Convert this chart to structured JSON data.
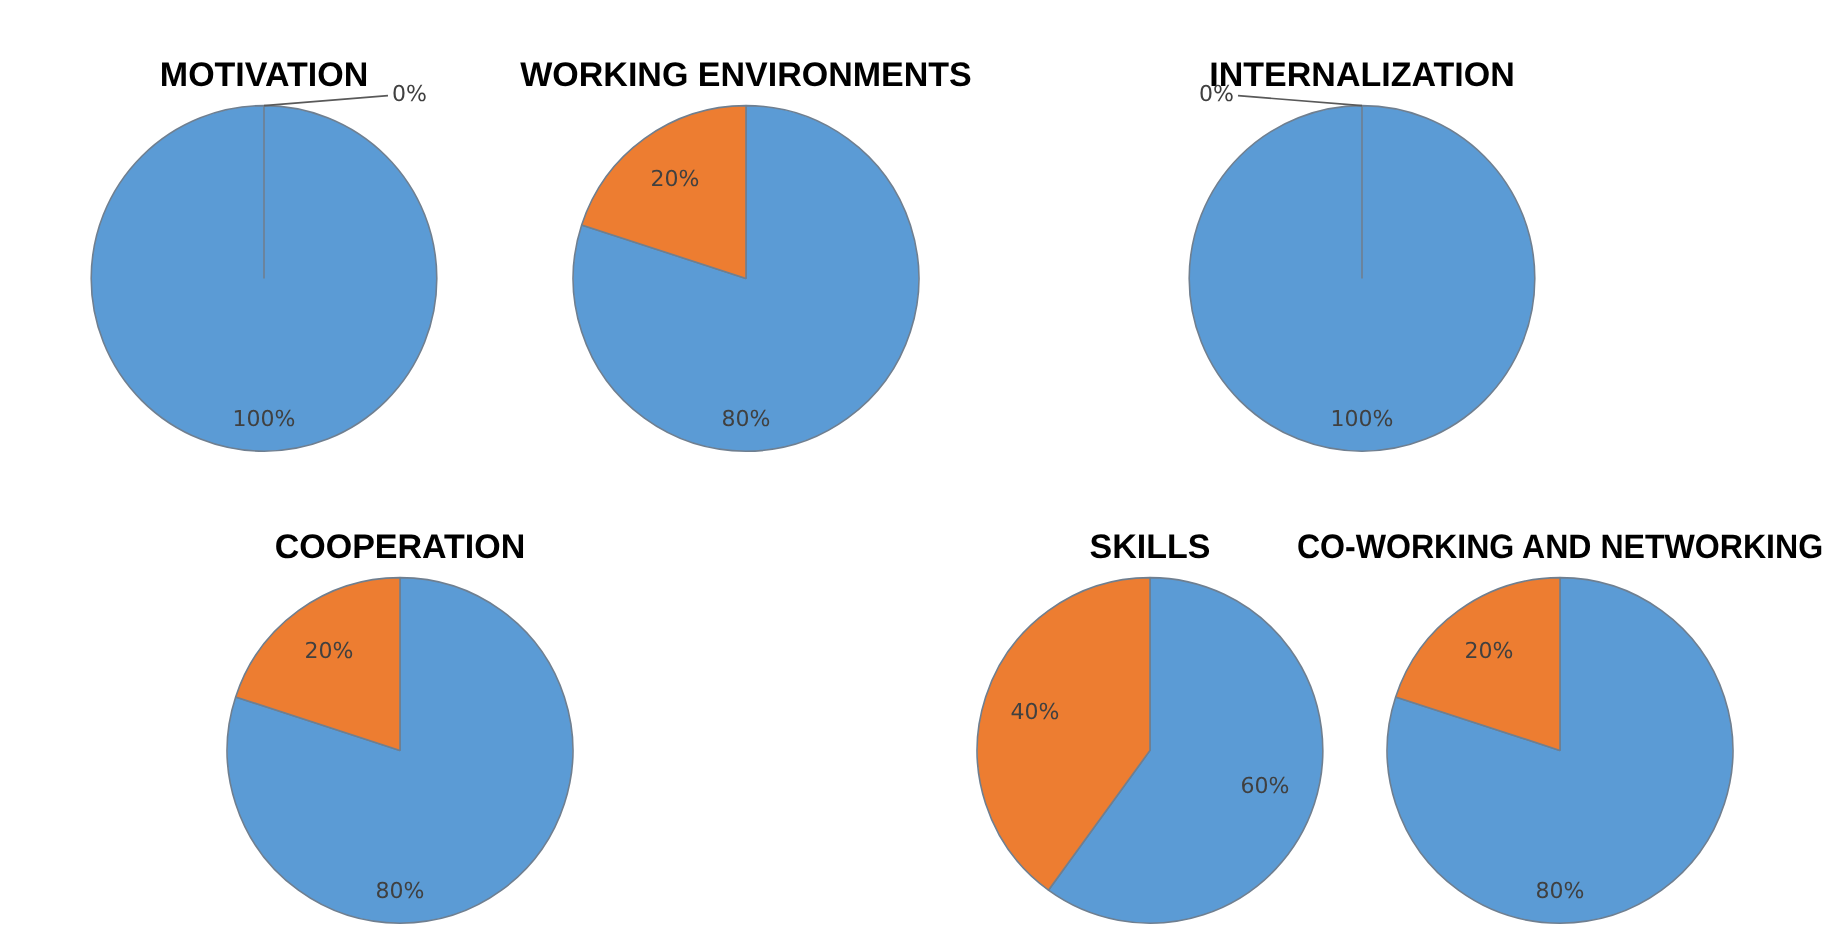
{
  "chart_data": [
    {
      "type": "pie",
      "title": "MOTIVATION",
      "categories": [
        null,
        null
      ],
      "values": [
        100,
        0
      ],
      "value_labels": [
        "100%",
        "0%"
      ],
      "colors": [
        "#5b9bd5",
        "#ed7d31"
      ],
      "legend": false
    },
    {
      "type": "pie",
      "title": "WORKING ENVIRONMENTS",
      "categories": [
        null,
        null
      ],
      "values": [
        80,
        20
      ],
      "value_labels": [
        "80%",
        "20%"
      ],
      "colors": [
        "#5b9bd5",
        "#ed7d31"
      ],
      "legend": false
    },
    {
      "type": "pie",
      "title": "INTERNALIZATION",
      "categories": [
        null,
        null
      ],
      "values": [
        100,
        0
      ],
      "value_labels": [
        "100%",
        "0%"
      ],
      "colors": [
        "#5b9bd5",
        "#ed7d31"
      ],
      "legend": false
    },
    {
      "type": "pie",
      "title": "COOPERATION",
      "categories": [
        null,
        null
      ],
      "values": [
        80,
        20
      ],
      "value_labels": [
        "80%",
        "20%"
      ],
      "colors": [
        "#5b9bd5",
        "#ed7d31"
      ],
      "legend": false
    },
    {
      "type": "pie",
      "title": "SKILLS",
      "categories": [
        null,
        null
      ],
      "values": [
        60,
        40
      ],
      "value_labels": [
        "60%",
        "40%"
      ],
      "colors": [
        "#5b9bd5",
        "#ed7d31"
      ],
      "legend": false
    },
    {
      "type": "pie",
      "title": "CO-WORKING AND NETWORKING",
      "categories": [
        null,
        null
      ],
      "values": [
        80,
        20
      ],
      "value_labels": [
        "80%",
        "20%"
      ],
      "colors": [
        "#5b9bd5",
        "#ed7d31"
      ],
      "legend": false
    }
  ]
}
